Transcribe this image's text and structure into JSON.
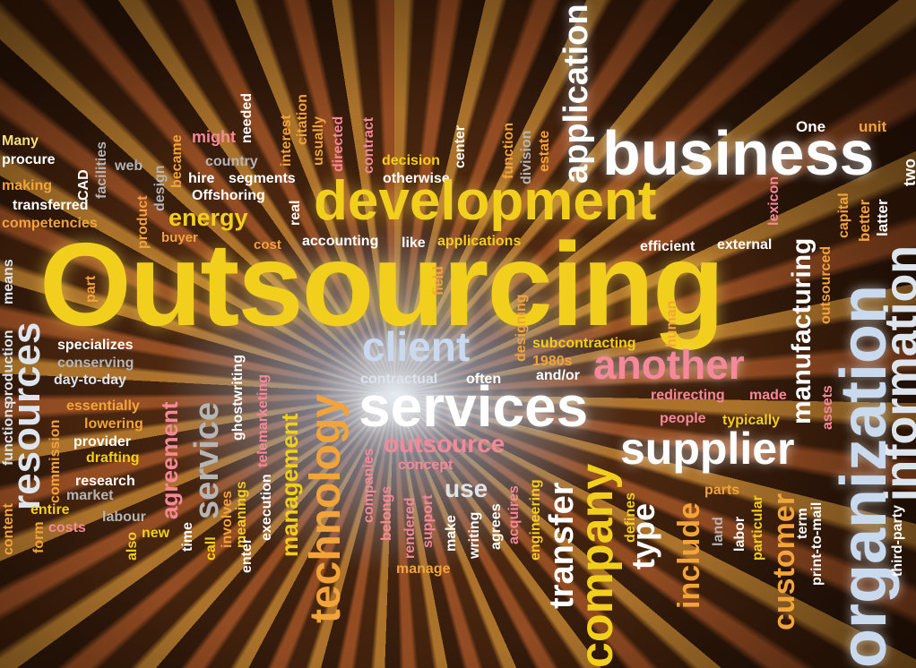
{
  "words": {
    "outsourcing": "Outsourcing",
    "development": "development",
    "business": "business",
    "application": "application",
    "one": "One",
    "unit": "unit",
    "two": "two",
    "many": "Many",
    "procure": "procure",
    "making": "making",
    "transferred": "transferred",
    "competencies": "competencies",
    "cad": "CAD",
    "facilities": "facilities",
    "web": "web",
    "design": "design",
    "product": "product",
    "became": "became",
    "might": "might",
    "country": "country",
    "hire": "hire",
    "segments": "segments",
    "offshoring": "Offshoring",
    "energy": "energy",
    "buyer": "buyer",
    "cost": "cost",
    "needed": "needed",
    "interest": "interest",
    "citation": "citation",
    "usually": "usually",
    "directed": "directed",
    "real": "real",
    "contract": "contract",
    "decision": "decision",
    "otherwise": "otherwise",
    "center": "center",
    "function": "function",
    "division": "division",
    "estate": "estate",
    "accounting": "accounting",
    "like": "like",
    "applications": "applications",
    "efficient": "efficient",
    "external": "external",
    "lexicon": "lexicon",
    "capital": "capital",
    "better": "better",
    "latter": "latter",
    "outsourced": "outsourced",
    "information": "information",
    "organization": "organization",
    "manufacturing": "manufacturing",
    "means": "means",
    "part": "part",
    "resources": "resources",
    "production": "production",
    "functions": "functions",
    "specializes": "specializes",
    "conserving": "conserving",
    "day_to_day": "day-to-day",
    "essentially": "essentially",
    "lowering": "lowering",
    "provider": "provider",
    "drafting": "drafting",
    "research": "research",
    "market": "market",
    "labour": "labour",
    "entire": "entire",
    "costs": "costs",
    "also": "also",
    "new": "new",
    "content": "content",
    "form": "form",
    "commission": "commission",
    "agreement": "agreement",
    "service": "service",
    "ghostwriting": "ghostwriting",
    "telemarketing": "telemarketing",
    "meanings": "meanings",
    "execution": "execution",
    "involves": "involves",
    "enter": "enter",
    "call": "call",
    "time": "time",
    "management": "management",
    "technology": "technology",
    "client": "client",
    "contractual": "contractual",
    "often": "often",
    "services": "services",
    "outsource": "outsource",
    "concept": "concept",
    "use": "use",
    "companies": "companies",
    "belongs": "belongs",
    "rendered": "rendered",
    "support": "support",
    "make": "make",
    "writing": "writing",
    "agrees": "agrees",
    "acquires": "acquires",
    "engineering": "engineering",
    "manage": "manage",
    "field": "field",
    "designing": "designing",
    "subcontracting": "subcontracting",
    "y1980s": "1980s",
    "and_or": "and/or",
    "another": "another",
    "human": "human",
    "redirecting": "redirecting",
    "made": "made",
    "people": "people",
    "typically": "typically",
    "assets": "assets",
    "supplier": "supplier",
    "transfer": "transfer",
    "company": "company",
    "type": "type",
    "defines": "defines",
    "include": "include",
    "parts": "parts",
    "land": "land",
    "labor": "labor",
    "particular": "particular",
    "customer": "customer",
    "term": "term",
    "print_to_mail": "print-to-mail",
    "third_party": "third-party"
  },
  "colors": {
    "yellow": "#f2cf1c",
    "orange": "#f2a33a",
    "white": "#ffffff",
    "pink": "#f7889a",
    "light_blue": "#c9d9ee",
    "grey": "#b5b5b5"
  }
}
